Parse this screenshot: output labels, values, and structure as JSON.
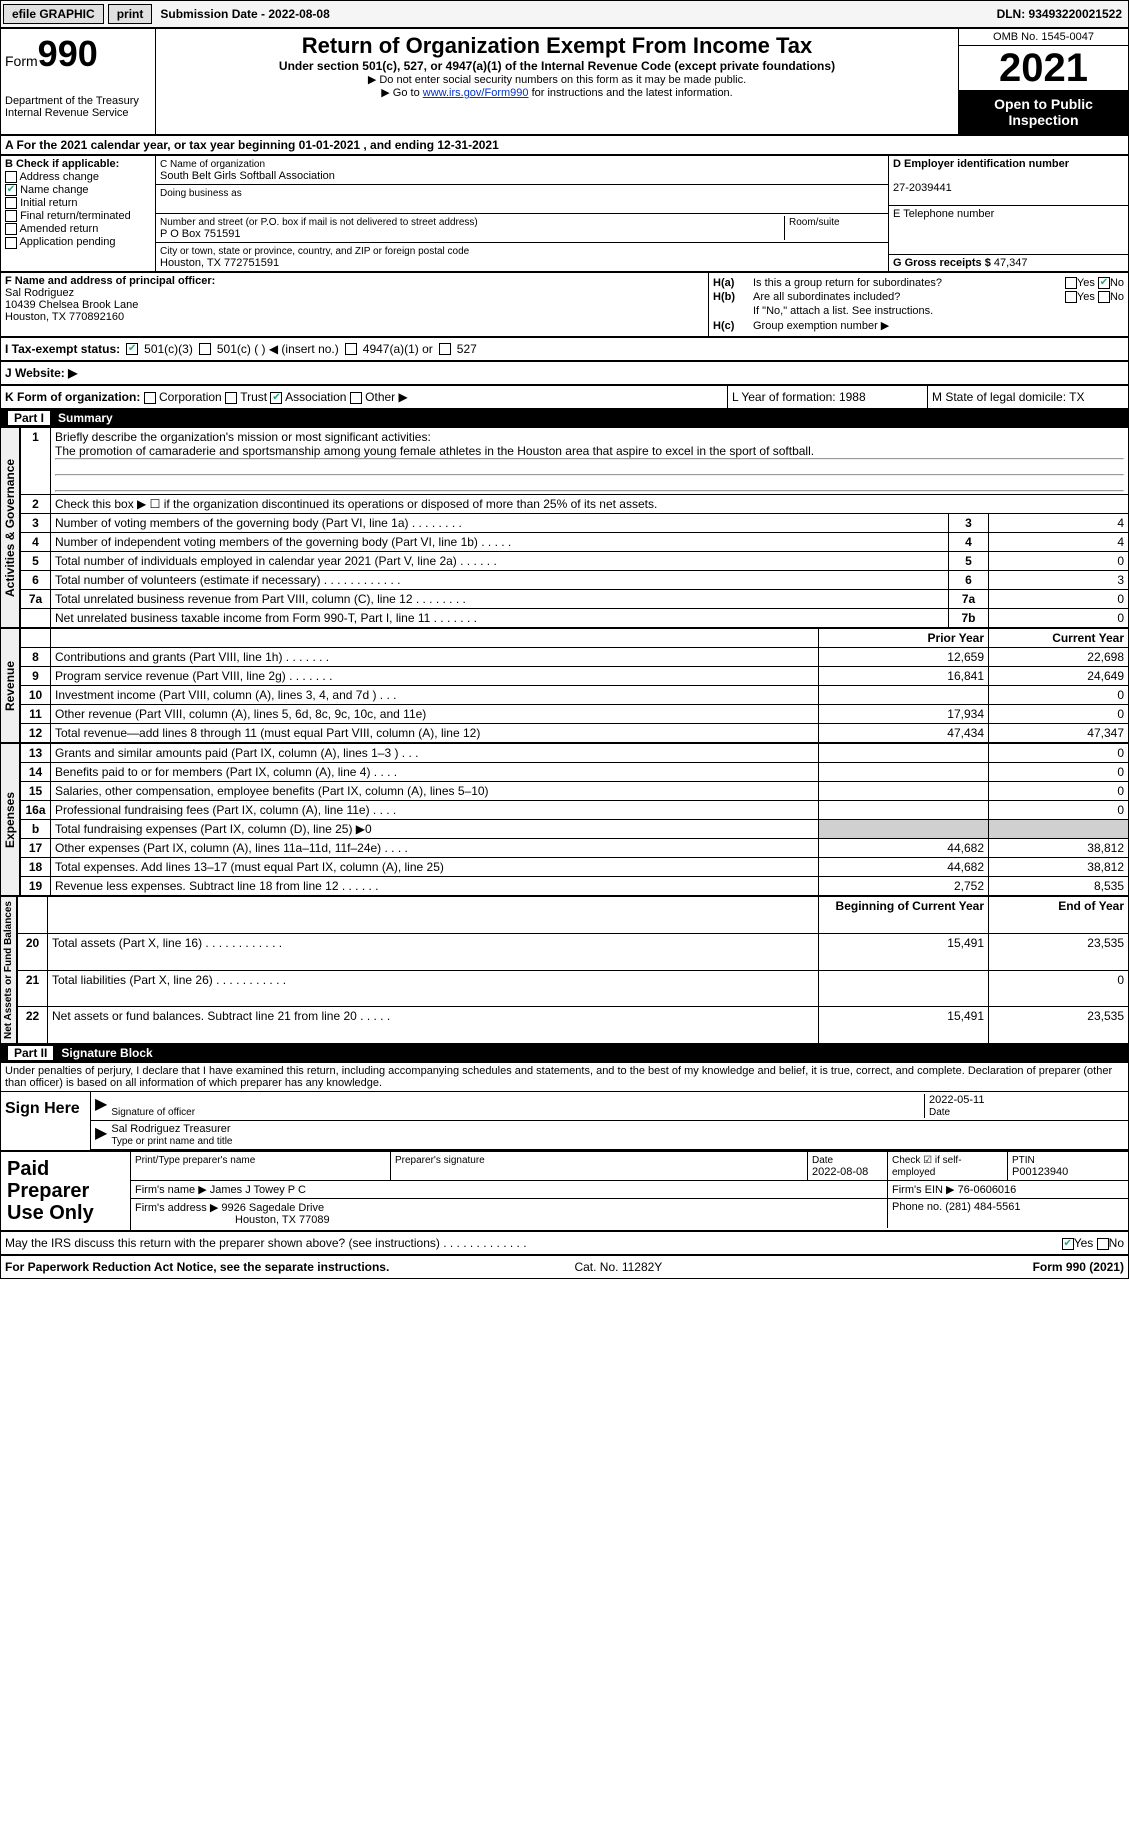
{
  "topbar": {
    "efile": "efile GRAPHIC",
    "print": "print",
    "subdate_lbl": "Submission Date - 2022-08-08",
    "dln": "DLN: 93493220021522"
  },
  "header": {
    "form": "Form",
    "num": "990",
    "dept": "Department of the Treasury\nInternal Revenue Service",
    "title": "Return of Organization Exempt From Income Tax",
    "sub": "Under section 501(c), 527, or 4947(a)(1) of the Internal Revenue Code (except private foundations)",
    "note1": "▶ Do not enter social security numbers on this form as it may be made public.",
    "note2_pre": "▶ Go to ",
    "note2_link": "www.irs.gov/Form990",
    "note2_post": " for instructions and the latest information.",
    "omb": "OMB No. 1545-0047",
    "year": "2021",
    "open": "Open to Public Inspection"
  },
  "rowA": "A For the 2021 calendar year, or tax year beginning 01-01-2021    , and ending 12-31-2021",
  "secB": {
    "hdr": "B Check if applicable:",
    "addr": "Address change",
    "name": "Name change",
    "init": "Initial return",
    "final": "Final return/terminated",
    "amend": "Amended return",
    "app": "Application pending"
  },
  "secC": {
    "name_lbl": "C Name of organization",
    "name": "South Belt Girls Softball Association",
    "dba_lbl": "Doing business as",
    "dba": "",
    "street_lbl": "Number and street (or P.O. box if mail is not delivered to street address)",
    "room_lbl": "Room/suite",
    "street": "P O Box 751591",
    "city_lbl": "City or town, state or province, country, and ZIP or foreign postal code",
    "city": "Houston, TX  772751591"
  },
  "secD": {
    "ein_lbl": "D Employer identification number",
    "ein": "27-2039441",
    "tel_lbl": "E Telephone number",
    "tel": "",
    "gross_lbl": "G Gross receipts $",
    "gross": "47,347"
  },
  "secF": {
    "lbl": "F  Name and address of principal officer:",
    "name": "Sal Rodriguez",
    "addr1": "10439 Chelsea Brook Lane",
    "addr2": "Houston, TX  770892160"
  },
  "secH": {
    "a": "Is this a group return for subordinates?",
    "b": "Are all subordinates included?",
    "bnote": "If \"No,\" attach a list. See instructions.",
    "c": "Group exemption number ▶",
    "yes": "Yes",
    "no": "No"
  },
  "rowI": {
    "lbl": "I   Tax-exempt status:",
    "o1": "501(c)(3)",
    "o2": "501(c) (  ) ◀ (insert no.)",
    "o3": "4947(a)(1) or",
    "o4": "527"
  },
  "rowJ": "J   Website: ▶",
  "rowK": {
    "lbl": "K Form of organization:",
    "corp": "Corporation",
    "trust": "Trust",
    "assoc": "Association",
    "other": "Other ▶",
    "L": "L Year of formation: 1988",
    "M": "M State of legal domicile: TX"
  },
  "part1": {
    "hdr": "Part I",
    "title": "Summary",
    "vlabel1": "Activities & Governance",
    "vlabel2": "Revenue",
    "vlabel3": "Expenses",
    "vlabel4": "Net Assets or Fund Balances",
    "l1_lbl": "Briefly describe the organization's mission or most significant activities:",
    "l1_val": "The promotion of camaraderie and sportsmanship among young female athletes in the Houston area that aspire to excel in the sport of softball.",
    "l2": "Check this box ▶ ☐  if the organization discontinued its operations or disposed of more than 25% of its net assets.",
    "rows_ag": [
      {
        "n": "3",
        "d": "Number of voting members of the governing body (Part VI, line 1a)  .   .   .   .   .   .   .   .",
        "b": "3",
        "v": "4"
      },
      {
        "n": "4",
        "d": "Number of independent voting members of the governing body (Part VI, line 1b)  .   .   .   .   .",
        "b": "4",
        "v": "4"
      },
      {
        "n": "5",
        "d": "Total number of individuals employed in calendar year 2021 (Part V, line 2a)  .   .   .   .   .   .",
        "b": "5",
        "v": "0"
      },
      {
        "n": "6",
        "d": "Total number of volunteers (estimate if necessary)   .   .   .   .   .   .   .   .   .   .   .   .",
        "b": "6",
        "v": "3"
      },
      {
        "n": "7a",
        "d": "Total unrelated business revenue from Part VIII, column (C), line 12   .   .   .   .   .   .   .   .",
        "b": "7a",
        "v": "0"
      },
      {
        "n": "",
        "d": "Net unrelated business taxable income from Form 990-T, Part I, line 11  .   .   .   .   .   .   .",
        "b": "7b",
        "v": "0"
      }
    ],
    "py_hdr": "Prior Year",
    "cy_hdr": "Current Year",
    "rows_rev": [
      {
        "n": "8",
        "d": "Contributions and grants (Part VIII, line 1h)   .   .   .   .   .   .   .",
        "py": "12,659",
        "cy": "22,698"
      },
      {
        "n": "9",
        "d": "Program service revenue (Part VIII, line 2g)   .   .   .   .   .   .   .",
        "py": "16,841",
        "cy": "24,649"
      },
      {
        "n": "10",
        "d": "Investment income (Part VIII, column (A), lines 3, 4, and 7d )   .   .   .",
        "py": "",
        "cy": "0"
      },
      {
        "n": "11",
        "d": "Other revenue (Part VIII, column (A), lines 5, 6d, 8c, 9c, 10c, and 11e)",
        "py": "17,934",
        "cy": "0"
      },
      {
        "n": "12",
        "d": "Total revenue—add lines 8 through 11 (must equal Part VIII, column (A), line 12)",
        "py": "47,434",
        "cy": "47,347"
      }
    ],
    "rows_exp": [
      {
        "n": "13",
        "d": "Grants and similar amounts paid (Part IX, column (A), lines 1–3 )   .   .   .",
        "py": "",
        "cy": "0"
      },
      {
        "n": "14",
        "d": "Benefits paid to or for members (Part IX, column (A), line 4)  .   .   .   .",
        "py": "",
        "cy": "0"
      },
      {
        "n": "15",
        "d": "Salaries, other compensation, employee benefits (Part IX, column (A), lines 5–10)",
        "py": "",
        "cy": "0"
      },
      {
        "n": "16a",
        "d": "Professional fundraising fees (Part IX, column (A), line 11e)  .   .   .   .",
        "py": "",
        "cy": "0"
      },
      {
        "n": "b",
        "d": "Total fundraising expenses (Part IX, column (D), line 25) ▶0",
        "py": "shade",
        "cy": "shade"
      },
      {
        "n": "17",
        "d": "Other expenses (Part IX, column (A), lines 11a–11d, 11f–24e)   .   .   .   .",
        "py": "44,682",
        "cy": "38,812"
      },
      {
        "n": "18",
        "d": "Total expenses. Add lines 13–17 (must equal Part IX, column (A), line 25)",
        "py": "44,682",
        "cy": "38,812"
      },
      {
        "n": "19",
        "d": "Revenue less expenses. Subtract line 18 from line 12  .   .   .   .   .   .",
        "py": "2,752",
        "cy": "8,535"
      }
    ],
    "boy_hdr": "Beginning of Current Year",
    "eoy_hdr": "End of Year",
    "rows_na": [
      {
        "n": "20",
        "d": "Total assets (Part X, line 16)  .   .   .   .   .   .   .   .   .   .   .   .",
        "py": "15,491",
        "cy": "23,535"
      },
      {
        "n": "21",
        "d": "Total liabilities (Part X, line 26)  .   .   .   .   .   .   .   .   .   .   .",
        "py": "",
        "cy": "0"
      },
      {
        "n": "22",
        "d": "Net assets or fund balances. Subtract line 21 from line 20  .   .   .   .   .",
        "py": "15,491",
        "cy": "23,535"
      }
    ]
  },
  "part2": {
    "hdr": "Part II",
    "title": "Signature Block",
    "decl": "Under penalties of perjury, I declare that I have examined this return, including accompanying schedules and statements, and to the best of my knowledge and belief, it is true, correct, and complete. Declaration of preparer (other than officer) is based on all information of which preparer has any knowledge.",
    "sign_here": "Sign Here",
    "sig_lbl": "Signature of officer",
    "sig_date": "2022-05-11",
    "date_lbl": "Date",
    "name_val": "Sal Rodriguez  Treasurer",
    "name_lbl": "Type or print name and title",
    "paid": "Paid Preparer Use Only",
    "p_name_lbl": "Print/Type preparer's name",
    "p_sig_lbl": "Preparer's signature",
    "p_date_lbl": "Date",
    "p_date": "2022-08-08",
    "p_check_lbl": "Check ☑ if self-employed",
    "p_ptin_lbl": "PTIN",
    "p_ptin": "P00123940",
    "firm_name_lbl": "Firm's name     ▶",
    "firm_name": "James J Towey P C",
    "firm_ein_lbl": "Firm's EIN ▶",
    "firm_ein": "76-0606016",
    "firm_addr_lbl": "Firm's address ▶",
    "firm_addr1": "9926 Sagedale Drive",
    "firm_addr2": "Houston, TX  77089",
    "phone_lbl": "Phone no.",
    "phone": "(281) 484-5561",
    "discuss": "May the IRS discuss this return with the preparer shown above? (see instructions)   .   .   .   .   .   .   .   .   .   .   .   .   .",
    "yes": "Yes",
    "no": "No"
  },
  "footer": {
    "pra": "For Paperwork Reduction Act Notice, see the separate instructions.",
    "cat": "Cat. No. 11282Y",
    "form": "Form 990 (2021)"
  }
}
